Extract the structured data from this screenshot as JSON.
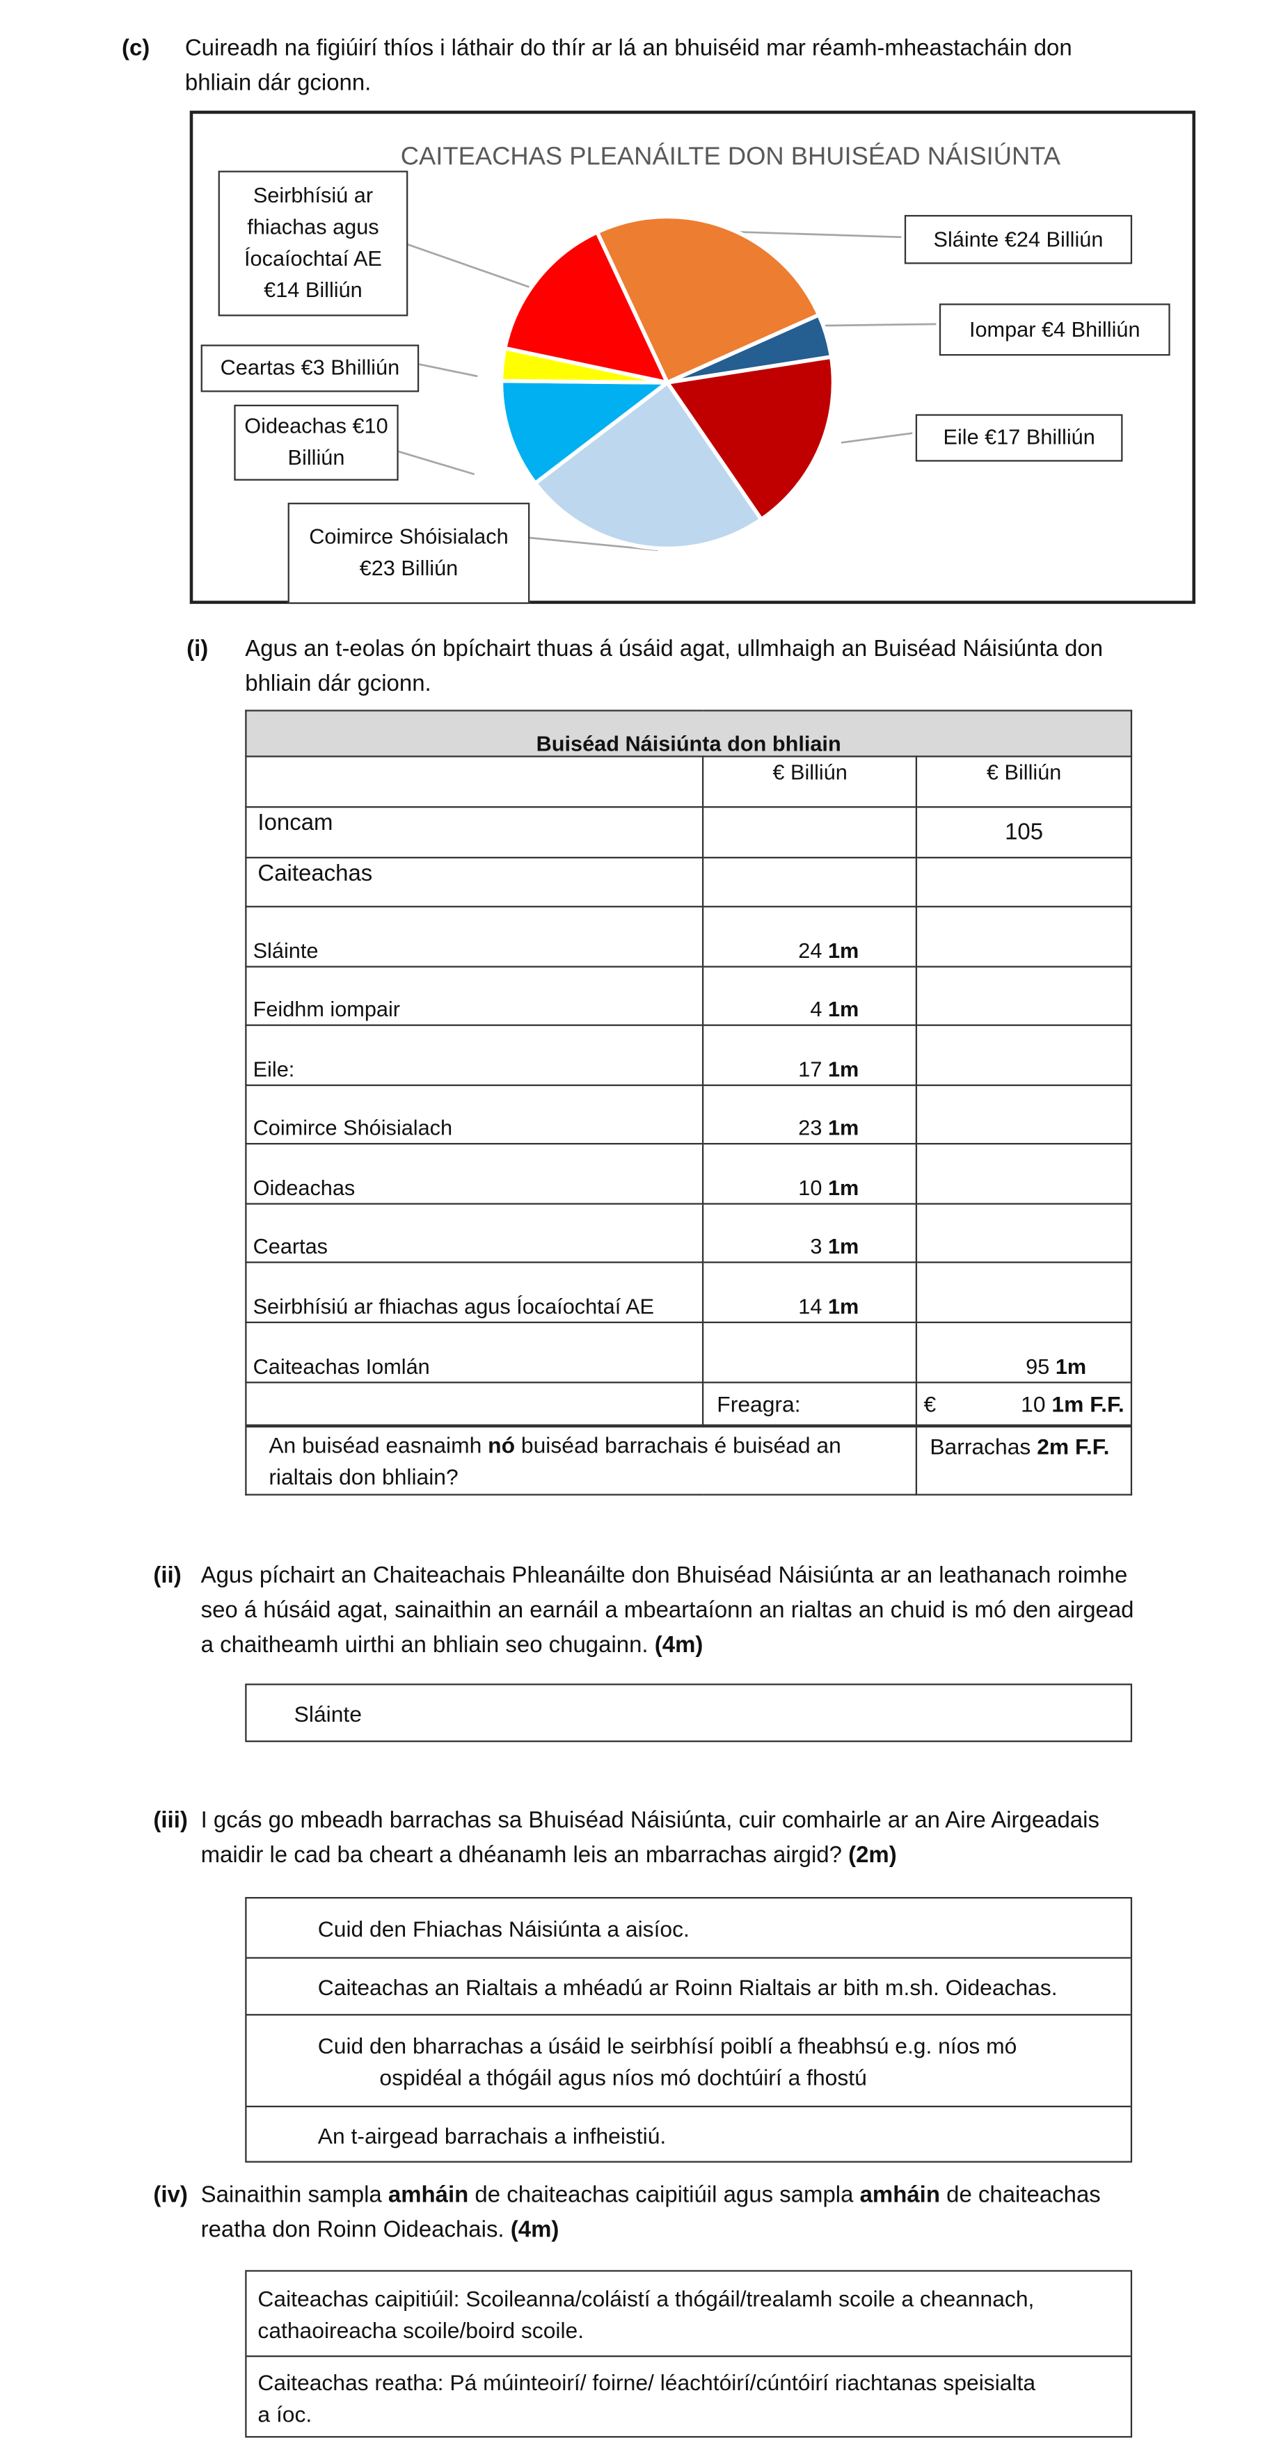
{
  "part_c": {
    "label": "(c)",
    "line1": "Cuireadh na figiúirí thíos i láthair do thír ar lá an bhuiséid mar réamh-mheastacháin don",
    "line2": "bhliain dár gcionn."
  },
  "chart_data": {
    "type": "pie",
    "title": "CAITEACHAS PLEANÁILTE DON BHUISÉAD NÁISIÚNTA",
    "slices": [
      {
        "label": "Sláinte €24 Billiún",
        "value": 24,
        "color": "#ED7D31"
      },
      {
        "label": "Iompar €4 Bhilliún",
        "value": 4,
        "color": "#255E91"
      },
      {
        "label": "Eile €17 Bhilliún",
        "value": 17,
        "color": "#C00000"
      },
      {
        "label": "Coimirce Shóisialach €23 Billiún",
        "value": 23,
        "color": "#BDD7EE"
      },
      {
        "label": "Oideachas €10 Billiún",
        "value": 10,
        "color": "#00B0F0"
      },
      {
        "label": "Ceartas €3 Bhilliún",
        "value": 3,
        "color": "#FFFF00"
      },
      {
        "label": "Seirbhísiú ar fhiachas agus Íocaíochtaí AE €14 Billiún",
        "value": 14,
        "color": "#FF0000"
      }
    ]
  },
  "part_i": {
    "label": "(i)",
    "line1": "Agus an t-eolas ón bpíchairt thuas á úsáid agat, ullmhaigh an Buiséad Náisiúnta don",
    "line2": "bhliain dár gcionn."
  },
  "table": {
    "title": "Buiséad Náisiúnta don bhliain",
    "col1": "€ Billiún",
    "col2": "€ Billiún",
    "income_label": "Ioncam",
    "income_value": "105",
    "expenditure_label": "Caiteachas",
    "rows": [
      {
        "label": "Sláinte",
        "value": "24",
        "mark": "1m"
      },
      {
        "label": "Feidhm iompair",
        "value": "4",
        "mark": "1m"
      },
      {
        "label": "Eile:",
        "value": "17",
        "mark": "1m"
      },
      {
        "label": "Coimirce Shóisialach",
        "value": "23",
        "mark": "1m"
      },
      {
        "label": "Oideachas",
        "value": "10",
        "mark": "1m"
      },
      {
        "label": "Ceartas",
        "value": "3",
        "mark": "1m"
      },
      {
        "label": "Seirbhísiú ar fhiachas agus Íocaíochtaí AE",
        "value": "14",
        "mark": "1m"
      }
    ],
    "total_label": "Caiteachas Iomlán",
    "total_value": "95",
    "total_mark": "1m",
    "answer_label": "Freagra:",
    "answer_currency": "€",
    "answer_value": "10",
    "answer_mark": "1m F.F.",
    "q_pre": "An buiséad easnaimh ",
    "q_bold": "nó",
    "q_post": " buiséad barrachais é buiséad an rialtais don bhliain?",
    "q_answer": "Barrachas",
    "q_answer_mark": "2m F.F."
  },
  "part_ii": {
    "label": "(ii)",
    "line1": "Agus píchairt an Chaiteachais Phleanáilte don Bhuiséad Náisiúnta ar an leathanach roimhe",
    "line2": "seo á húsáid agat, sainaithin an earnáil a mbeartaíonn an rialtas an chuid is mó den airgead",
    "line3": "a chaitheamh uirthi an bhliain seo chugainn.",
    "marks": "(4m)",
    "answer": "Sláinte"
  },
  "part_iii": {
    "label": "(iii)",
    "line1": "I gcás go mbeadh barrachas sa Bhuiséad Náisiúnta, cuir comhairle ar an Aire Airgeadais",
    "line2": "maidir le cad ba cheart a dhéanamh leis an mbarrachas airgid?",
    "marks": "(2m)",
    "answers": [
      "Cuid den Fhiachas Náisiúnta a aisíoc.",
      "Caiteachas an Rialtais a mhéadú ar Roinn Rialtais ar bith m.sh. Oideachas.",
      "Cuid den bharrachas a úsáid le seirbhísí poiblí a fheabhsú e.g. níos mó",
      "ospidéal a thógáil agus níos mó dochtúirí a fhostú",
      "An t-airgead barrachais a infheistiú."
    ]
  },
  "part_iv": {
    "label": "(iv)",
    "pre": "Sainaithin sampla ",
    "bold1": "amháin",
    "mid": " de chaiteachas caipitiúil agus sampla ",
    "bold2": "amháin",
    "post": " de chaiteachas",
    "line2": "reatha don Roinn Oideachais.",
    "marks": "(4m)",
    "answers": [
      "Caiteachas caipitiúil: Scoileanna/coláistí a thógáil/trealamh scoile a cheannach,",
      "cathaoireacha scoile/boird scoile.",
      "Caiteachas reatha: Pá múinteoirí/ foirne/ léachtóirí/cúntóirí riachtanas speisialta",
      "a íoc."
    ]
  }
}
